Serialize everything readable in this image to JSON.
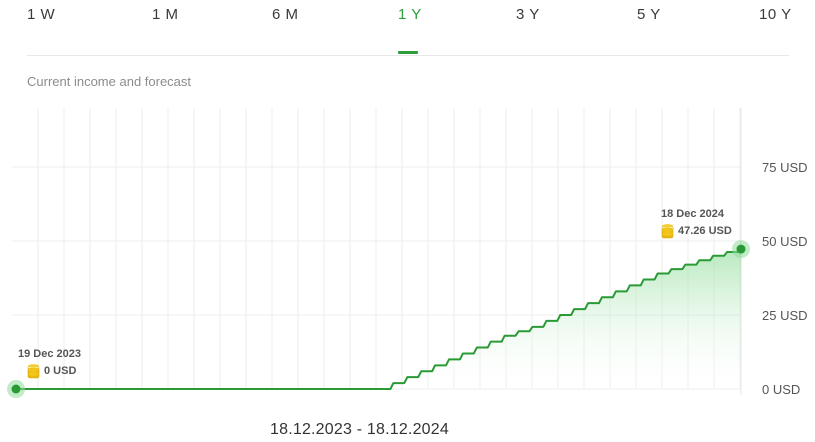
{
  "tabs": [
    {
      "label": "1 W",
      "active": false
    },
    {
      "label": "1 M",
      "active": false
    },
    {
      "label": "6 M",
      "active": false
    },
    {
      "label": "1 Y",
      "active": true
    },
    {
      "label": "3 Y",
      "active": false
    },
    {
      "label": "5 Y",
      "active": false
    },
    {
      "label": "10 Y",
      "active": false
    }
  ],
  "chart_title": "Current income and forecast",
  "date_range": "18.12.2023 - 18.12.2024",
  "colors": {
    "accent": "#2e9e3a",
    "line": "#2a9a35",
    "fill_top": "#8fdc9a",
    "grid": "#eeeeee",
    "coin": "#f2c51b"
  },
  "chart_data": {
    "type": "area",
    "y_ticks": [
      "0 USD",
      "25 USD",
      "50 USD",
      "75 USD"
    ],
    "ylim": [
      0,
      95
    ],
    "x_start": "2023-12-19",
    "x_end": "2024-12-18",
    "series": [
      {
        "x": [
          "2023-12-19",
          "2024-06-19",
          "2024-06-26",
          "2024-07-03",
          "2024-07-10",
          "2024-07-17",
          "2024-07-24",
          "2024-07-31",
          "2024-08-07",
          "2024-08-14",
          "2024-08-21",
          "2024-08-28",
          "2024-09-04",
          "2024-09-11",
          "2024-09-18",
          "2024-09-25",
          "2024-10-02",
          "2024-10-09",
          "2024-10-16",
          "2024-10-23",
          "2024-10-30",
          "2024-11-06",
          "2024-11-13",
          "2024-11-20",
          "2024-11-27",
          "2024-12-04",
          "2024-12-11",
          "2024-12-18"
        ],
        "values": [
          0,
          0,
          2,
          4,
          6,
          8,
          10,
          12,
          14,
          16,
          18,
          19.5,
          21,
          23,
          25,
          27,
          29,
          31,
          33,
          35,
          37,
          39,
          40.5,
          42,
          43.5,
          45,
          46.3,
          47.26
        ]
      }
    ],
    "annotations": [
      {
        "date": "19 Dec 2023",
        "value": "0 USD",
        "position": "start"
      },
      {
        "date": "18 Dec 2024",
        "value": "47.26 USD",
        "position": "end"
      }
    ],
    "grid": true
  }
}
